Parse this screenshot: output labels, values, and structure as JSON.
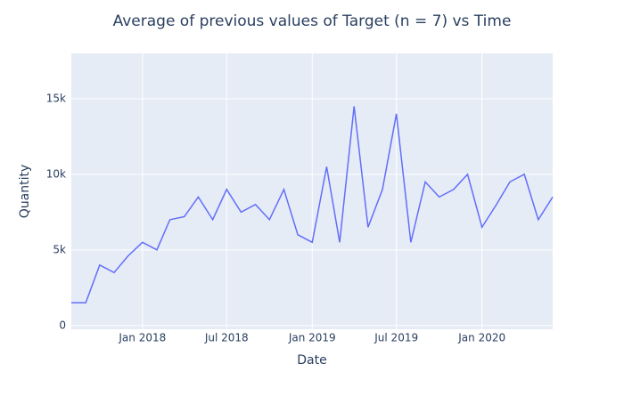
{
  "chart_data": {
    "type": "line",
    "title": "Average of previous values of Target (n = 7) vs Time",
    "x_label": "Date",
    "y_label": "Quantity",
    "x": [
      "2017-08",
      "2017-09",
      "2017-10",
      "2017-11",
      "2017-12",
      "2018-01",
      "2018-02",
      "2018-03",
      "2018-04",
      "2018-05",
      "2018-06",
      "2018-07",
      "2018-08",
      "2018-09",
      "2018-10",
      "2018-11",
      "2018-12",
      "2019-01",
      "2019-02",
      "2019-03",
      "2019-04",
      "2019-05",
      "2019-06",
      "2019-07",
      "2019-08",
      "2019-09",
      "2019-10",
      "2019-11",
      "2019-12",
      "2020-01",
      "2020-02",
      "2020-03",
      "2020-04",
      "2020-05",
      "2020-06"
    ],
    "series": [
      {
        "name": "Quantity",
        "color": "#636efa",
        "values": [
          1500,
          1500,
          4000,
          3500,
          4600,
          5500,
          5000,
          7000,
          7200,
          8500,
          7000,
          9000,
          7500,
          8000,
          7000,
          9000,
          6000,
          5500,
          10500,
          5500,
          14500,
          6500,
          9000,
          14000,
          5500,
          9500,
          8500,
          9000,
          10000,
          6500,
          8000,
          9500,
          10000,
          7000,
          8500
        ]
      }
    ],
    "xlim": [
      "2017-08",
      "2020-06"
    ],
    "xticks": [
      {
        "value": "2018-01",
        "label": "Jan 2018"
      },
      {
        "value": "2018-07",
        "label": "Jul 2018"
      },
      {
        "value": "2019-01",
        "label": "Jan 2019"
      },
      {
        "value": "2019-07",
        "label": "Jul 2019"
      },
      {
        "value": "2020-01",
        "label": "Jan 2020"
      }
    ],
    "ylim": [
      -250,
      18000
    ],
    "yticks": [
      0,
      {
        "value": 5000,
        "label": "5k"
      },
      {
        "value": 10000,
        "label": "10k"
      },
      {
        "value": 15000,
        "label": "15k"
      }
    ],
    "grid": true
  }
}
